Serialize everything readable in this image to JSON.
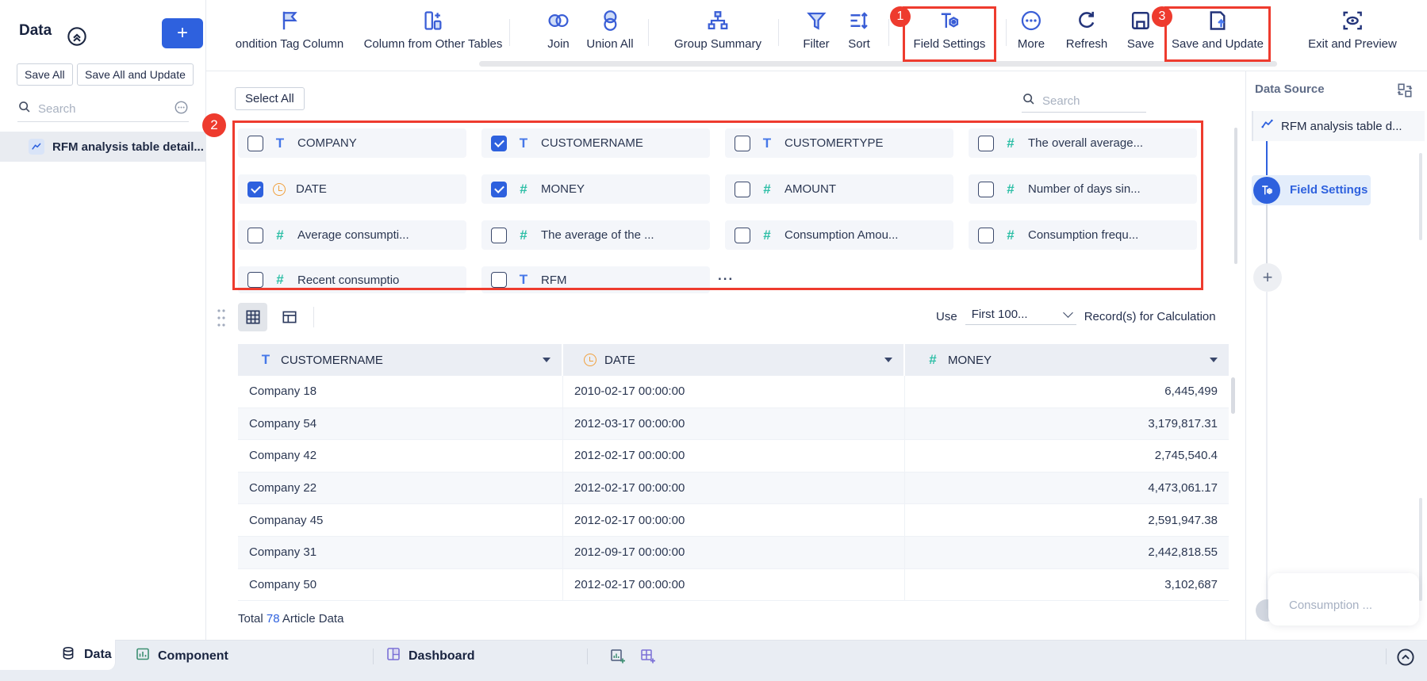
{
  "colors": {
    "primary_blue": "#2e61de",
    "annotation_red": "#ee3b2e",
    "text_field_blue": "#4577e8",
    "number_field_teal": "#2fbfa7",
    "date_field_orange": "#f0a03c"
  },
  "left_sidebar": {
    "title": "Data",
    "add_label": "+",
    "save_all": "Save All",
    "save_all_and_update": "Save All and Update",
    "search_placeholder": "Search",
    "items": [
      {
        "label": "RFM analysis table detail..."
      }
    ]
  },
  "toolbar": {
    "items": [
      {
        "label": "ondition Tag Column"
      },
      {
        "label": "Column from Other Tables"
      },
      {
        "label": "Join"
      },
      {
        "label": "Union All"
      },
      {
        "label": "Group Summary"
      },
      {
        "label": "Filter"
      },
      {
        "label": "Sort"
      },
      {
        "label": "Field Settings"
      },
      {
        "label": "More"
      },
      {
        "label": "Refresh"
      },
      {
        "label": "Save"
      },
      {
        "label": "Save and Update"
      },
      {
        "label": "Exit and Preview"
      }
    ]
  },
  "annotations": {
    "badges": [
      "1",
      "2",
      "3"
    ]
  },
  "field_panel": {
    "select_all_label": "Select All",
    "search_placeholder": "Search",
    "more_ellipsis": "...",
    "fields": [
      {
        "label": "COMPANY",
        "type": "text",
        "checked": false
      },
      {
        "label": "CUSTOMERNAME",
        "type": "text",
        "checked": true
      },
      {
        "label": "CUSTOMERTYPE",
        "type": "text",
        "checked": false
      },
      {
        "label": "The overall average...",
        "type": "number",
        "checked": false
      },
      {
        "label": "DATE",
        "type": "date",
        "checked": true
      },
      {
        "label": "MONEY",
        "type": "number",
        "checked": true
      },
      {
        "label": "AMOUNT",
        "type": "number",
        "checked": false
      },
      {
        "label": "Number of days sin...",
        "type": "number",
        "checked": false
      },
      {
        "label": "Average consumpti...",
        "type": "number",
        "checked": false
      },
      {
        "label": "The average of the ...",
        "type": "number",
        "checked": false
      },
      {
        "label": "Consumption Amou...",
        "type": "number",
        "checked": false
      },
      {
        "label": "Consumption frequ...",
        "type": "number",
        "checked": false
      },
      {
        "label": "Recent consumptio",
        "type": "number",
        "checked": false
      },
      {
        "label": "RFM",
        "type": "text",
        "checked": false
      }
    ]
  },
  "table_section": {
    "use_label": "Use",
    "rows_dropdown_value": "First 100...",
    "records_label": "Record(s) for Calculation",
    "columns": [
      {
        "label": "CUSTOMERNAME",
        "type": "text"
      },
      {
        "label": "DATE",
        "type": "date"
      },
      {
        "label": "MONEY",
        "type": "number"
      }
    ],
    "rows": [
      [
        "Company 18",
        "2010-02-17 00:00:00",
        "6,445,499"
      ],
      [
        "Company 54",
        "2012-03-17 00:00:00",
        "3,179,817.31"
      ],
      [
        "Company 42",
        "2012-02-17 00:00:00",
        "2,745,540.4"
      ],
      [
        "Company 22",
        "2012-02-17 00:00:00",
        "4,473,061.17"
      ],
      [
        "Companay 45",
        "2012-02-17 00:00:00",
        "2,591,947.38"
      ],
      [
        "Company 31",
        "2012-09-17 00:00:00",
        "2,442,818.55"
      ],
      [
        "Company 50",
        "2012-02-17 00:00:00",
        "3,102,687"
      ]
    ],
    "total": {
      "prefix": "Total",
      "count": "78",
      "suffix": "Article Data"
    }
  },
  "right_panel": {
    "title": "Data Source",
    "source_node": "RFM analysis table d...",
    "step_node": "Field Settings",
    "add_label": "+",
    "hidden_node": "Consumption ..."
  },
  "bottom_bar": {
    "data_tab": "Data",
    "component_tab": "Component",
    "dashboard_tab": "Dashboard"
  }
}
